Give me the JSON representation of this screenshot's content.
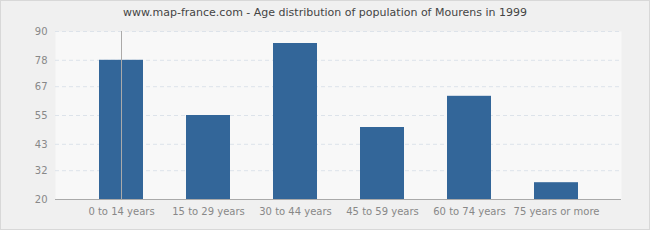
{
  "chart_data": {
    "type": "bar",
    "title": "www.map-france.com - Age distribution of population of Mourens in 1999",
    "categories": [
      "0 to 14 years",
      "15 to 29 years",
      "30 to 44 years",
      "45 to 59 years",
      "60 to 74 years",
      "75 years or more"
    ],
    "values": [
      78,
      55,
      85,
      50,
      63,
      27
    ],
    "color": "#336699",
    "ylim": [
      20,
      90
    ],
    "yticks": [
      20,
      32,
      43,
      55,
      67,
      78,
      90
    ],
    "grid": true
  }
}
